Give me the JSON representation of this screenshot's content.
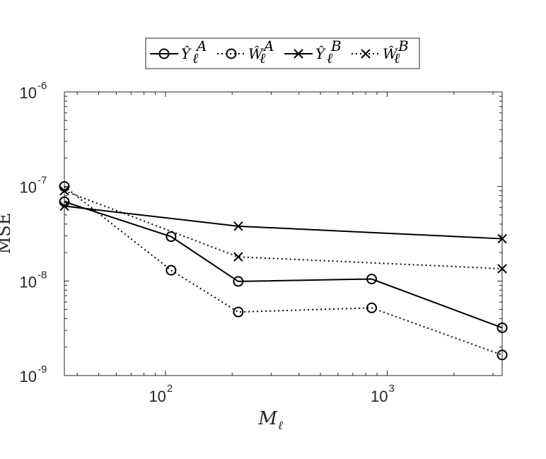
{
  "chart_data": {
    "type": "line",
    "xlabel": "M_ℓ",
    "ylabel": "MSE",
    "xscale": "log",
    "yscale": "log",
    "xlim": [
      35,
      3300
    ],
    "ylim": [
      1e-09,
      1e-06
    ],
    "x_ticks": [
      {
        "value": 100,
        "base": "10",
        "exp": "2"
      },
      {
        "value": 1000,
        "base": "10",
        "exp": "3"
      }
    ],
    "y_ticks": [
      {
        "value": 1e-09,
        "base": "10",
        "exp": "-9"
      },
      {
        "value": 1e-08,
        "base": "10",
        "exp": "-8"
      },
      {
        "value": 1e-07,
        "base": "10",
        "exp": "-7"
      },
      {
        "value": 1e-06,
        "base": "10",
        "exp": "-6"
      }
    ],
    "grid": false,
    "legend_position": "top",
    "series": [
      {
        "name": "Ŷ_ℓ^A",
        "line": "solid",
        "marker": "circle",
        "x": [
          35,
          106,
          213,
          851,
          3301
        ],
        "y": [
          6.9e-08,
          2.95e-08,
          9.9e-09,
          1.05e-08,
          3.2e-09
        ]
      },
      {
        "name": "Ŵ_ℓ^A",
        "line": "dotted",
        "marker": "circle",
        "x": [
          35,
          106,
          213,
          851,
          3301
        ],
        "y": [
          1e-07,
          1.3e-08,
          4.7e-09,
          5.2e-09,
          1.65e-09
        ]
      },
      {
        "name": "Ŷ_ℓ^B",
        "line": "solid",
        "marker": "x",
        "x": [
          35,
          213,
          3301
        ],
        "y": [
          6.2e-08,
          3.8e-08,
          2.8e-08
        ]
      },
      {
        "name": "Ŵ_ℓ^B",
        "line": "dotted",
        "marker": "x",
        "x": [
          35,
          213,
          3301
        ],
        "y": [
          9e-08,
          1.8e-08,
          1.35e-08
        ]
      }
    ]
  },
  "legend": {
    "items": [
      {
        "symbol": "Ŷ",
        "sub": "ℓ",
        "sup": "A"
      },
      {
        "symbol": "Ŵ",
        "sub": "ℓ",
        "sup": "A"
      },
      {
        "symbol": "Ŷ",
        "sub": "ℓ",
        "sup": "B"
      },
      {
        "symbol": "Ŵ",
        "sub": "ℓ",
        "sup": "B"
      }
    ]
  }
}
